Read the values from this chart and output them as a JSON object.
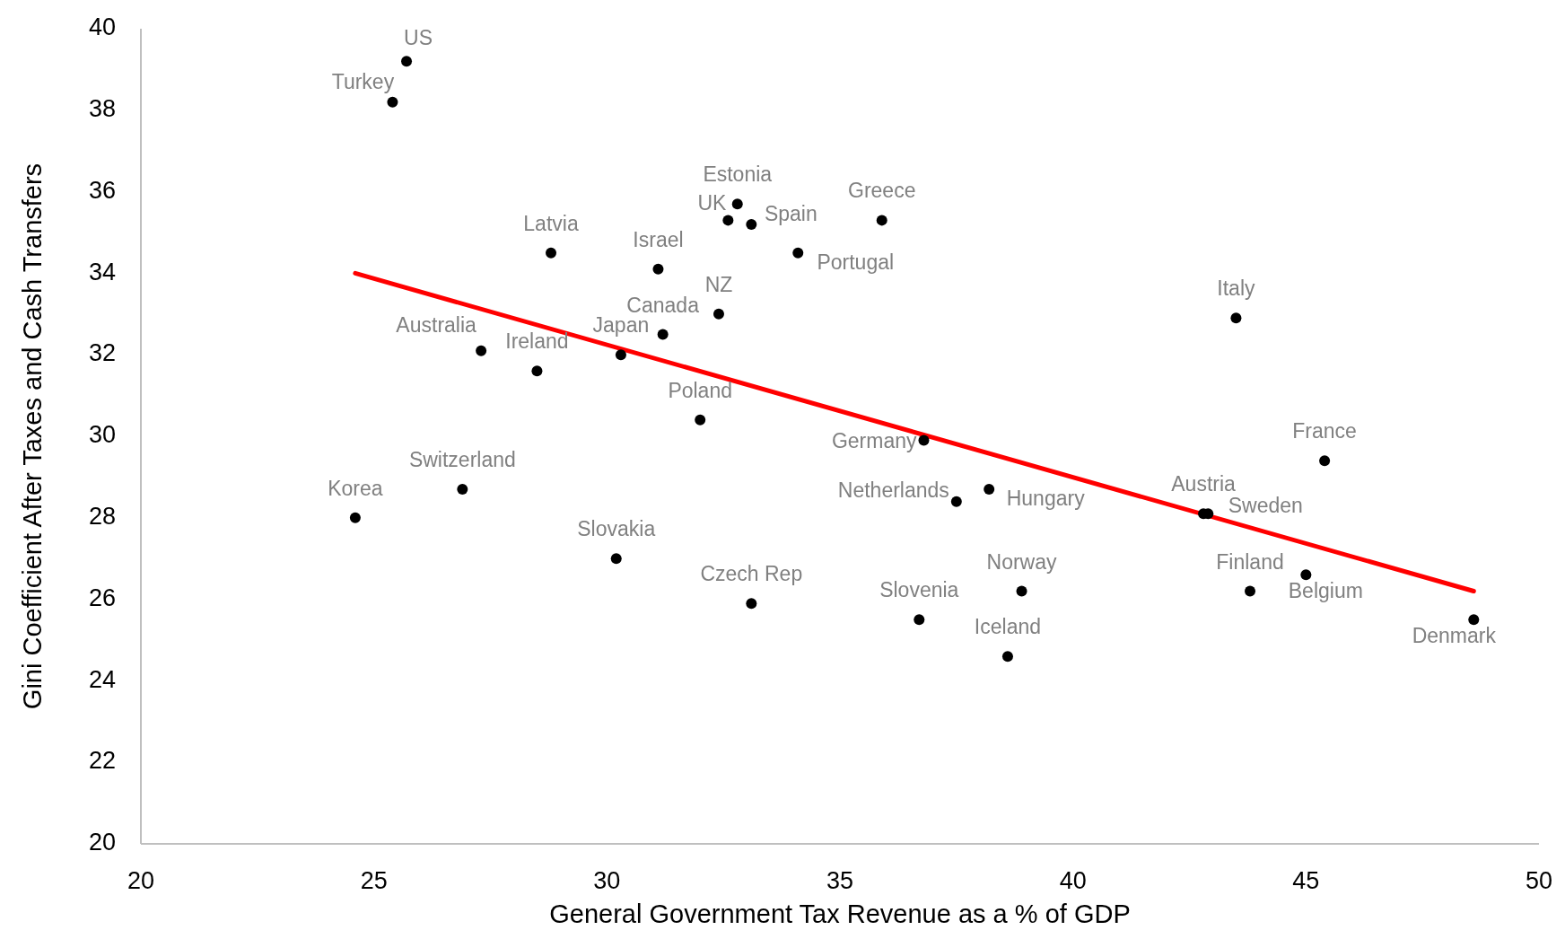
{
  "chart_data": {
    "type": "scatter",
    "xlabel": "General Government Tax Revenue as a % of GDP",
    "ylabel": "Gini Coefficient After Taxes and Cash Transfers",
    "xlim": [
      20,
      50
    ],
    "xticks": [
      20,
      25,
      30,
      35,
      40,
      45,
      50
    ],
    "ylim": [
      20,
      40
    ],
    "yticks": [
      20,
      22,
      24,
      26,
      28,
      30,
      32,
      34,
      36,
      38,
      40
    ],
    "grid": false,
    "series": [
      {
        "marker": "circle",
        "color": "#000000",
        "x": [
          25.7,
          25.4,
          32.8,
          32.6,
          33.1,
          35.9,
          28.8,
          31.1,
          34.1,
          32.4,
          31.2,
          43.5,
          27.3,
          30.3,
          28.5,
          32.0,
          36.8,
          45.4,
          26.9,
          24.6,
          37.5,
          38.2,
          42.8,
          42.9,
          30.2,
          33.1,
          38.9,
          43.8,
          45.0,
          36.7,
          38.6,
          48.6
        ],
        "values": [
          39.2,
          38.2,
          35.7,
          35.3,
          35.2,
          35.3,
          34.5,
          34.1,
          34.5,
          33.0,
          32.5,
          32.9,
          32.1,
          32.0,
          31.6,
          30.4,
          29.9,
          29.4,
          28.7,
          28.0,
          28.4,
          28.7,
          28.1,
          28.1,
          27.0,
          25.9,
          26.2,
          26.2,
          26.6,
          25.5,
          24.6,
          25.5
        ]
      },
      {
        "type": "line",
        "color": "#ff0000",
        "x": [
          24.6,
          48.6
        ],
        "values": [
          34.0,
          26.2
        ]
      }
    ],
    "annotations": [
      {
        "text": "US",
        "x": 25.7,
        "y": 39.2
      },
      {
        "text": "Turkey",
        "x": 25.4,
        "y": 38.2
      },
      {
        "text": "Estonia",
        "x": 32.8,
        "y": 35.7
      },
      {
        "text": "UK",
        "x": 32.6,
        "y": 35.3
      },
      {
        "text": "Spain",
        "x": 33.1,
        "y": 35.2
      },
      {
        "text": "Greece",
        "x": 35.9,
        "y": 35.3
      },
      {
        "text": "Latvia",
        "x": 28.8,
        "y": 34.5
      },
      {
        "text": "Israel",
        "x": 31.1,
        "y": 34.1
      },
      {
        "text": "Portugal",
        "x": 34.1,
        "y": 34.5
      },
      {
        "text": "NZ",
        "x": 32.4,
        "y": 33.0
      },
      {
        "text": "Canada",
        "x": 31.2,
        "y": 32.5
      },
      {
        "text": "Italy",
        "x": 43.5,
        "y": 32.9
      },
      {
        "text": "Australia",
        "x": 27.3,
        "y": 32.1
      },
      {
        "text": "Japan",
        "x": 30.3,
        "y": 32.0
      },
      {
        "text": "Ireland",
        "x": 28.5,
        "y": 31.6
      },
      {
        "text": "Poland",
        "x": 32.0,
        "y": 30.4
      },
      {
        "text": "Germany",
        "x": 36.8,
        "y": 29.9
      },
      {
        "text": "France",
        "x": 45.4,
        "y": 29.4
      },
      {
        "text": "Switzerland",
        "x": 26.9,
        "y": 28.7
      },
      {
        "text": "Korea",
        "x": 24.6,
        "y": 28.0
      },
      {
        "text": "Netherlands",
        "x": 37.5,
        "y": 28.4
      },
      {
        "text": "Hungary",
        "x": 38.2,
        "y": 28.7
      },
      {
        "text": "Austria",
        "x": 42.8,
        "y": 28.1
      },
      {
        "text": "Sweden",
        "x": 42.9,
        "y": 28.1
      },
      {
        "text": "Slovakia",
        "x": 30.2,
        "y": 27.0
      },
      {
        "text": "Czech Rep",
        "x": 33.1,
        "y": 25.9
      },
      {
        "text": "Norway",
        "x": 38.9,
        "y": 26.2
      },
      {
        "text": "Finland",
        "x": 43.8,
        "y": 26.2
      },
      {
        "text": "Belgium",
        "x": 45.0,
        "y": 26.6
      },
      {
        "text": "Slovenia",
        "x": 36.7,
        "y": 25.5
      },
      {
        "text": "Iceland",
        "x": 38.6,
        "y": 24.6
      },
      {
        "text": "Denmark",
        "x": 48.6,
        "y": 25.5
      }
    ]
  }
}
